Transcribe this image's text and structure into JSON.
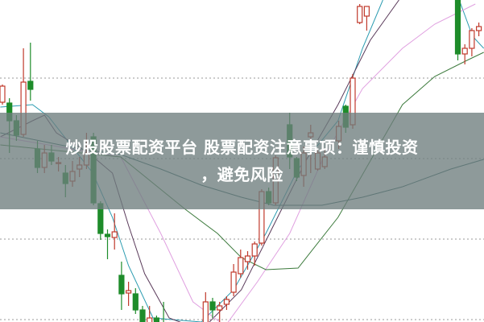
{
  "overlay": {
    "title_line1": "炒股股票配资平台 股票配资注意事项：谨慎投资",
    "title_line2": "，避免风险"
  },
  "chart_data": {
    "type": "candlestick",
    "title": "",
    "xlabel": "",
    "ylabel": "",
    "grid": true,
    "grid_style": "dotted horizontal",
    "ylim": [
      0,
      39.7
    ],
    "xlim": [
      -0.3,
      68.7
    ],
    "up_color": "#c0392b",
    "down_color": "#1e8c2a",
    "candles": [
      {
        "i": 0,
        "o": 27.0,
        "h": 29.2,
        "l": 26.7,
        "c": 29.0
      },
      {
        "i": 1,
        "o": 26.9,
        "h": 27.5,
        "l": 20.7,
        "c": 24.7
      },
      {
        "i": 2,
        "o": 24.7,
        "h": 25.4,
        "l": 22.2,
        "c": 22.9
      },
      {
        "i": 3,
        "o": 23.0,
        "h": 33.7,
        "l": 22.7,
        "c": 29.5
      },
      {
        "i": 4,
        "o": 29.6,
        "h": 34.4,
        "l": 27.2,
        "c": 28.6
      },
      {
        "i": 5,
        "o": 21.2,
        "h": 22.2,
        "l": 18.2,
        "c": 18.9
      },
      {
        "i": 6,
        "o": 18.9,
        "h": 21.7,
        "l": 18.2,
        "c": 20.7
      },
      {
        "i": 7,
        "o": 20.7,
        "h": 21.7,
        "l": 19.2,
        "c": 19.7
      },
      {
        "i": 8,
        "o": 19.4,
        "h": 20.2,
        "l": 18.4,
        "c": 19.5
      },
      {
        "i": 9,
        "o": 18.2,
        "h": 19.2,
        "l": 15.2,
        "c": 16.9
      },
      {
        "i": 10,
        "o": 17.2,
        "h": 19.7,
        "l": 16.5,
        "c": 18.4
      },
      {
        "i": 11,
        "o": 18.7,
        "h": 20.2,
        "l": 17.7,
        "c": 19.2
      },
      {
        "i": 12,
        "o": 19.2,
        "h": 23.2,
        "l": 18.7,
        "c": 20.7
      },
      {
        "i": 13,
        "o": 22.7,
        "h": 23.2,
        "l": 14.2,
        "c": 14.5
      },
      {
        "i": 14,
        "o": 14.4,
        "h": 14.7,
        "l": 9.9,
        "c": 10.7
      },
      {
        "i": 15,
        "o": 10.6,
        "h": 11.2,
        "l": 7.5,
        "c": 10.3
      },
      {
        "i": 16,
        "o": 10.2,
        "h": 13.2,
        "l": 8.7,
        "c": 10.9
      },
      {
        "i": 17,
        "o": 5.5,
        "h": 7.2,
        "l": 1.2,
        "c": 3.2
      },
      {
        "i": 18,
        "o": 3.3,
        "h": 4.7,
        "l": 1.7,
        "c": 3.6
      },
      {
        "i": 19,
        "o": 3.2,
        "h": 3.9,
        "l": 0.7,
        "c": 1.2
      },
      {
        "i": 20,
        "o": 1.2,
        "h": 1.7,
        "l": -0.8,
        "c": -0.5
      },
      {
        "i": 21,
        "o": -0.5,
        "h": 1.7,
        "l": -0.8,
        "c": 0.2
      },
      {
        "i": 22,
        "o": 0.2,
        "h": 0.5,
        "l": -1.0,
        "c": -0.8
      },
      {
        "i": 23,
        "o": -0.5,
        "h": 2.2,
        "l": -1.5,
        "c": -1.0
      },
      {
        "i": 29,
        "o": -0.5,
        "h": 3.4,
        "l": -0.8,
        "c": 2.2
      },
      {
        "i": 30,
        "o": 2.2,
        "h": 2.7,
        "l": 0.2,
        "c": 1.2
      },
      {
        "i": 31,
        "o": 1.2,
        "h": 2.2,
        "l": -0.3,
        "c": 1.7
      },
      {
        "i": 32,
        "o": 1.9,
        "h": 2.9,
        "l": 1.2,
        "c": 2.5
      },
      {
        "i": 33,
        "o": 3.4,
        "h": 6.9,
        "l": 2.9,
        "c": 5.9
      },
      {
        "i": 34,
        "o": 5.7,
        "h": 8.7,
        "l": 5.2,
        "c": 7.7
      },
      {
        "i": 35,
        "o": 7.2,
        "h": 8.5,
        "l": 6.2,
        "c": 7.9
      },
      {
        "i": 36,
        "o": 7.9,
        "h": 9.7,
        "l": 6.7,
        "c": 9.4
      },
      {
        "i": 37,
        "o": 9.5,
        "h": 16.2,
        "l": 9.2,
        "c": 15.9
      },
      {
        "i": 38,
        "o": 15.9,
        "h": 16.4,
        "l": 14.2,
        "c": 14.5
      },
      {
        "i": 39,
        "o": 14.5,
        "h": 20.4,
        "l": 14.2,
        "c": 20.1
      },
      {
        "i": 41,
        "o": 24.2,
        "h": 25.7,
        "l": 18.7,
        "c": 20.2
      },
      {
        "i": 42,
        "o": 20.0,
        "h": 20.2,
        "l": 17.2,
        "c": 17.7
      },
      {
        "i": 43,
        "o": 17.9,
        "h": 21.5,
        "l": 16.5,
        "c": 20.7
      },
      {
        "i": 44,
        "o": 22.7,
        "h": 24.2,
        "l": 18.2,
        "c": 23.2
      },
      {
        "i": 45,
        "o": 18.7,
        "h": 21.2,
        "l": 18.5,
        "c": 20.7
      },
      {
        "i": 46,
        "o": 19.0,
        "h": 21.2,
        "l": 18.7,
        "c": 20.2
      },
      {
        "i": 48,
        "o": 22.2,
        "h": 24.7,
        "l": 21.2,
        "c": 24.0
      },
      {
        "i": 49,
        "o": 26.5,
        "h": 26.7,
        "l": 23.2,
        "c": 23.9
      },
      {
        "i": 50,
        "o": 24.2,
        "h": 30.5,
        "l": 23.7,
        "c": 30.0
      },
      {
        "i": 51,
        "o": 36.9,
        "h": 39.2,
        "l": 36.7,
        "c": 38.9
      },
      {
        "i": 52,
        "o": 37.7,
        "h": 38.9,
        "l": 35.9,
        "c": 38.9
      },
      {
        "i": 65,
        "o": 40.0,
        "h": 40.0,
        "l": 32.2,
        "c": 33.0
      },
      {
        "i": 66,
        "o": 33.0,
        "h": 34.2,
        "l": 31.7,
        "c": 33.7
      },
      {
        "i": 67,
        "o": 33.7,
        "h": 36.2,
        "l": 32.7,
        "c": 35.9
      },
      {
        "i": 68,
        "o": 35.9,
        "h": 36.9,
        "l": 35.2,
        "c": 36.4
      }
    ],
    "moving_averages": [
      {
        "color": "#2a9bb0",
        "points": [
          [
            -0.3,
            26.4
          ],
          [
            4.3,
            26.7
          ],
          [
            6.6,
            25.2
          ],
          [
            12.9,
            18.2
          ],
          [
            15.7,
            12.7
          ],
          [
            18.0,
            6.7
          ],
          [
            21.5,
            0.2
          ],
          [
            28.4,
            -0.3
          ],
          [
            33.0,
            3.7
          ],
          [
            37.6,
            10.7
          ],
          [
            42.2,
            18.7
          ],
          [
            47.9,
            24.7
          ],
          [
            51.4,
            33.7
          ],
          [
            54.3,
            39.7
          ]
        ]
      },
      {
        "color": "#2a9bb0",
        "points": [
          [
            65.2,
            39.7
          ],
          [
            67.1,
            35.2
          ],
          [
            68.7,
            33.7
          ]
        ]
      },
      {
        "color": "#5a3a5a",
        "points": [
          [
            -0.3,
            22.7
          ],
          [
            4.3,
            24.7
          ],
          [
            6.0,
            25.4
          ],
          [
            7.7,
            23.2
          ],
          [
            12.3,
            20.7
          ],
          [
            15.7,
            18.2
          ],
          [
            18.0,
            11.7
          ],
          [
            20.3,
            5.7
          ],
          [
            23.8,
            0.2
          ],
          [
            28.4,
            -1.3
          ],
          [
            34.1,
            3.7
          ],
          [
            38.7,
            11.7
          ],
          [
            43.3,
            19.7
          ],
          [
            47.9,
            26.7
          ],
          [
            52.5,
            34.7
          ],
          [
            56.6,
            39.7
          ]
        ]
      },
      {
        "color": "#e0a0e0",
        "points": [
          [
            -0.3,
            22.7
          ],
          [
            16.9,
            20.2
          ],
          [
            22.6,
            10.7
          ],
          [
            27.2,
            2.2
          ],
          [
            31.8,
            -0.8
          ],
          [
            36.4,
            4.7
          ],
          [
            41.0,
            10.7
          ],
          [
            45.6,
            19.7
          ],
          [
            51.4,
            28.7
          ],
          [
            57.1,
            33.7
          ],
          [
            61.7,
            36.7
          ],
          [
            67.5,
            39.2
          ]
        ]
      },
      {
        "color": "#3c7a3c",
        "points": [
          [
            -0.3,
            21.7
          ],
          [
            16.9,
            20.2
          ],
          [
            26.1,
            13.7
          ],
          [
            30.7,
            10.7
          ],
          [
            34.1,
            7.7
          ],
          [
            37.6,
            6.2
          ],
          [
            42.2,
            6.4
          ],
          [
            47.9,
            12.7
          ],
          [
            52.5,
            19.7
          ],
          [
            57.1,
            26.7
          ],
          [
            61.7,
            30.2
          ],
          [
            66.3,
            32.2
          ],
          [
            68.7,
            33.2
          ]
        ]
      },
      {
        "color": "#2f6060",
        "points": [
          [
            -0.3,
            23.2
          ],
          [
            5.4,
            22.2
          ],
          [
            11.1,
            21.2
          ],
          [
            16.9,
            20.5
          ],
          [
            22.6,
            18.7
          ],
          [
            28.4,
            16.7
          ],
          [
            34.1,
            15.2
          ],
          [
            38.7,
            14.2
          ],
          [
            45.6,
            14.2
          ],
          [
            51.4,
            15.2
          ],
          [
            57.1,
            16.5
          ],
          [
            64.0,
            18.7
          ],
          [
            68.7,
            19.9
          ]
        ]
      }
    ],
    "gridlines": [
      30,
      20,
      10,
      0
    ]
  }
}
